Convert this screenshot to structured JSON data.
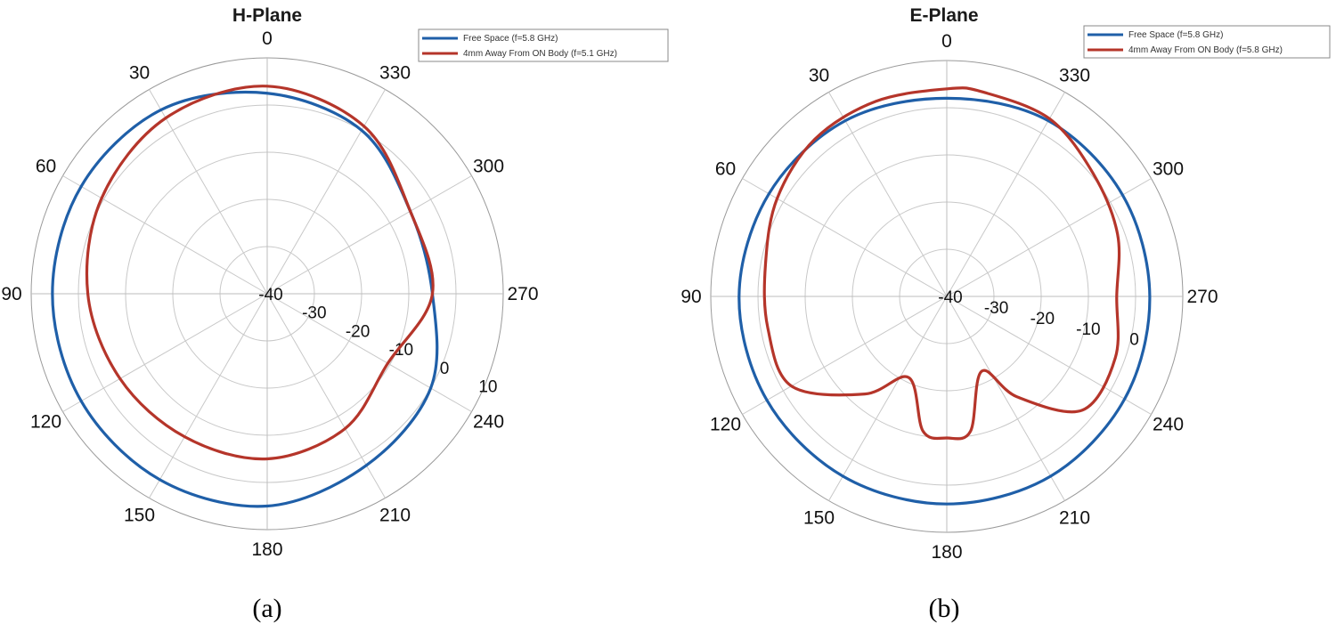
{
  "chart_data": [
    {
      "type": "polar",
      "title": "H-Plane",
      "caption": "(a)",
      "r_ticks": [
        -40,
        -30,
        -20,
        -10,
        0,
        10
      ],
      "r_tick_labels": [
        "-40",
        "-30",
        "-20",
        "-10",
        "0",
        "10"
      ],
      "rlim": [
        -40,
        10
      ],
      "theta_direction": "counterclockwise",
      "theta_zero": "top",
      "theta_ticks": [
        0,
        30,
        60,
        90,
        120,
        150,
        180,
        210,
        240,
        270,
        300,
        330
      ],
      "theta_tick_labels": [
        "0",
        "30",
        "60",
        "90",
        "120",
        "150",
        "180",
        "210",
        "240",
        "270",
        "300",
        "330"
      ],
      "legend": {
        "placement": "top-right",
        "entries": [
          "Free Space (f=5.8 GHz)",
          "4mm Away From ON Body (f=5.1 GHz)"
        ]
      },
      "series": [
        {
          "name": "Free Space (f=5.8 GHz)",
          "color": "#1f5fa8",
          "theta": [
            0,
            30,
            60,
            90,
            120,
            150,
            180,
            210,
            240,
            270,
            300,
            330
          ],
          "r": [
            2.5,
            5.0,
            5.5,
            5.5,
            5.5,
            5.5,
            5.0,
            2.0,
            0.0,
            -5.0,
            -5.0,
            0.0
          ]
        },
        {
          "name": "4mm Away From ON Body (f=5.1 GHz)",
          "color": "#b5352a",
          "theta": [
            0,
            30,
            60,
            90,
            120,
            150,
            180,
            210,
            240,
            270,
            300,
            330
          ],
          "r": [
            4.0,
            3.0,
            0.5,
            -2.0,
            -4.0,
            -5.0,
            -5.0,
            -7.0,
            -10.5,
            -5.0,
            -5.0,
            1.0
          ]
        }
      ]
    },
    {
      "type": "polar",
      "title": "E-Plane",
      "caption": "(b)",
      "r_ticks": [
        -40,
        -30,
        -20,
        -10,
        0
      ],
      "r_tick_labels": [
        "-40",
        "-30",
        "-20",
        "-10",
        "0"
      ],
      "rlim": [
        -40,
        10
      ],
      "theta_direction": "counterclockwise",
      "theta_zero": "top",
      "theta_ticks": [
        0,
        30,
        60,
        90,
        120,
        150,
        180,
        210,
        240,
        270,
        300,
        330
      ],
      "theta_tick_labels": [
        "0",
        "30",
        "60",
        "90",
        "120",
        "150",
        "180",
        "210",
        "240",
        "270",
        "300",
        "330"
      ],
      "legend": {
        "placement": "top-right",
        "entries": [
          "Free Space (f=5.8 GHz)",
          "4mm Away From ON Body (f=5.8 GHz)"
        ]
      },
      "series": [
        {
          "name": "Free Space (f=5.8 GHz)",
          "color": "#1f5fa8",
          "theta": [
            0,
            30,
            60,
            90,
            120,
            150,
            180,
            210,
            240,
            270,
            300,
            330
          ],
          "r": [
            2.0,
            3.0,
            3.5,
            4.0,
            4.0,
            4.0,
            4.0,
            4.0,
            3.5,
            3.0,
            3.0,
            3.0
          ]
        },
        {
          "name": "4mm Away From ON Body (f=5.8 GHz)",
          "color": "#b5352a",
          "theta": [
            0,
            20,
            40,
            60,
            80,
            100,
            120,
            140,
            155,
            170,
            180,
            190,
            205,
            215,
            230,
            250,
            270,
            290,
            310,
            330,
            350
          ],
          "r": [
            4.0,
            4.0,
            3.5,
            1.5,
            -1.0,
            -1.5,
            -2.0,
            -13.0,
            -21.0,
            -11.0,
            -10.0,
            -11.0,
            -22.5,
            -14.0,
            -2.5,
            -2.0,
            -4.0,
            -1.5,
            0.5,
            3.5,
            4.0
          ]
        }
      ]
    }
  ]
}
